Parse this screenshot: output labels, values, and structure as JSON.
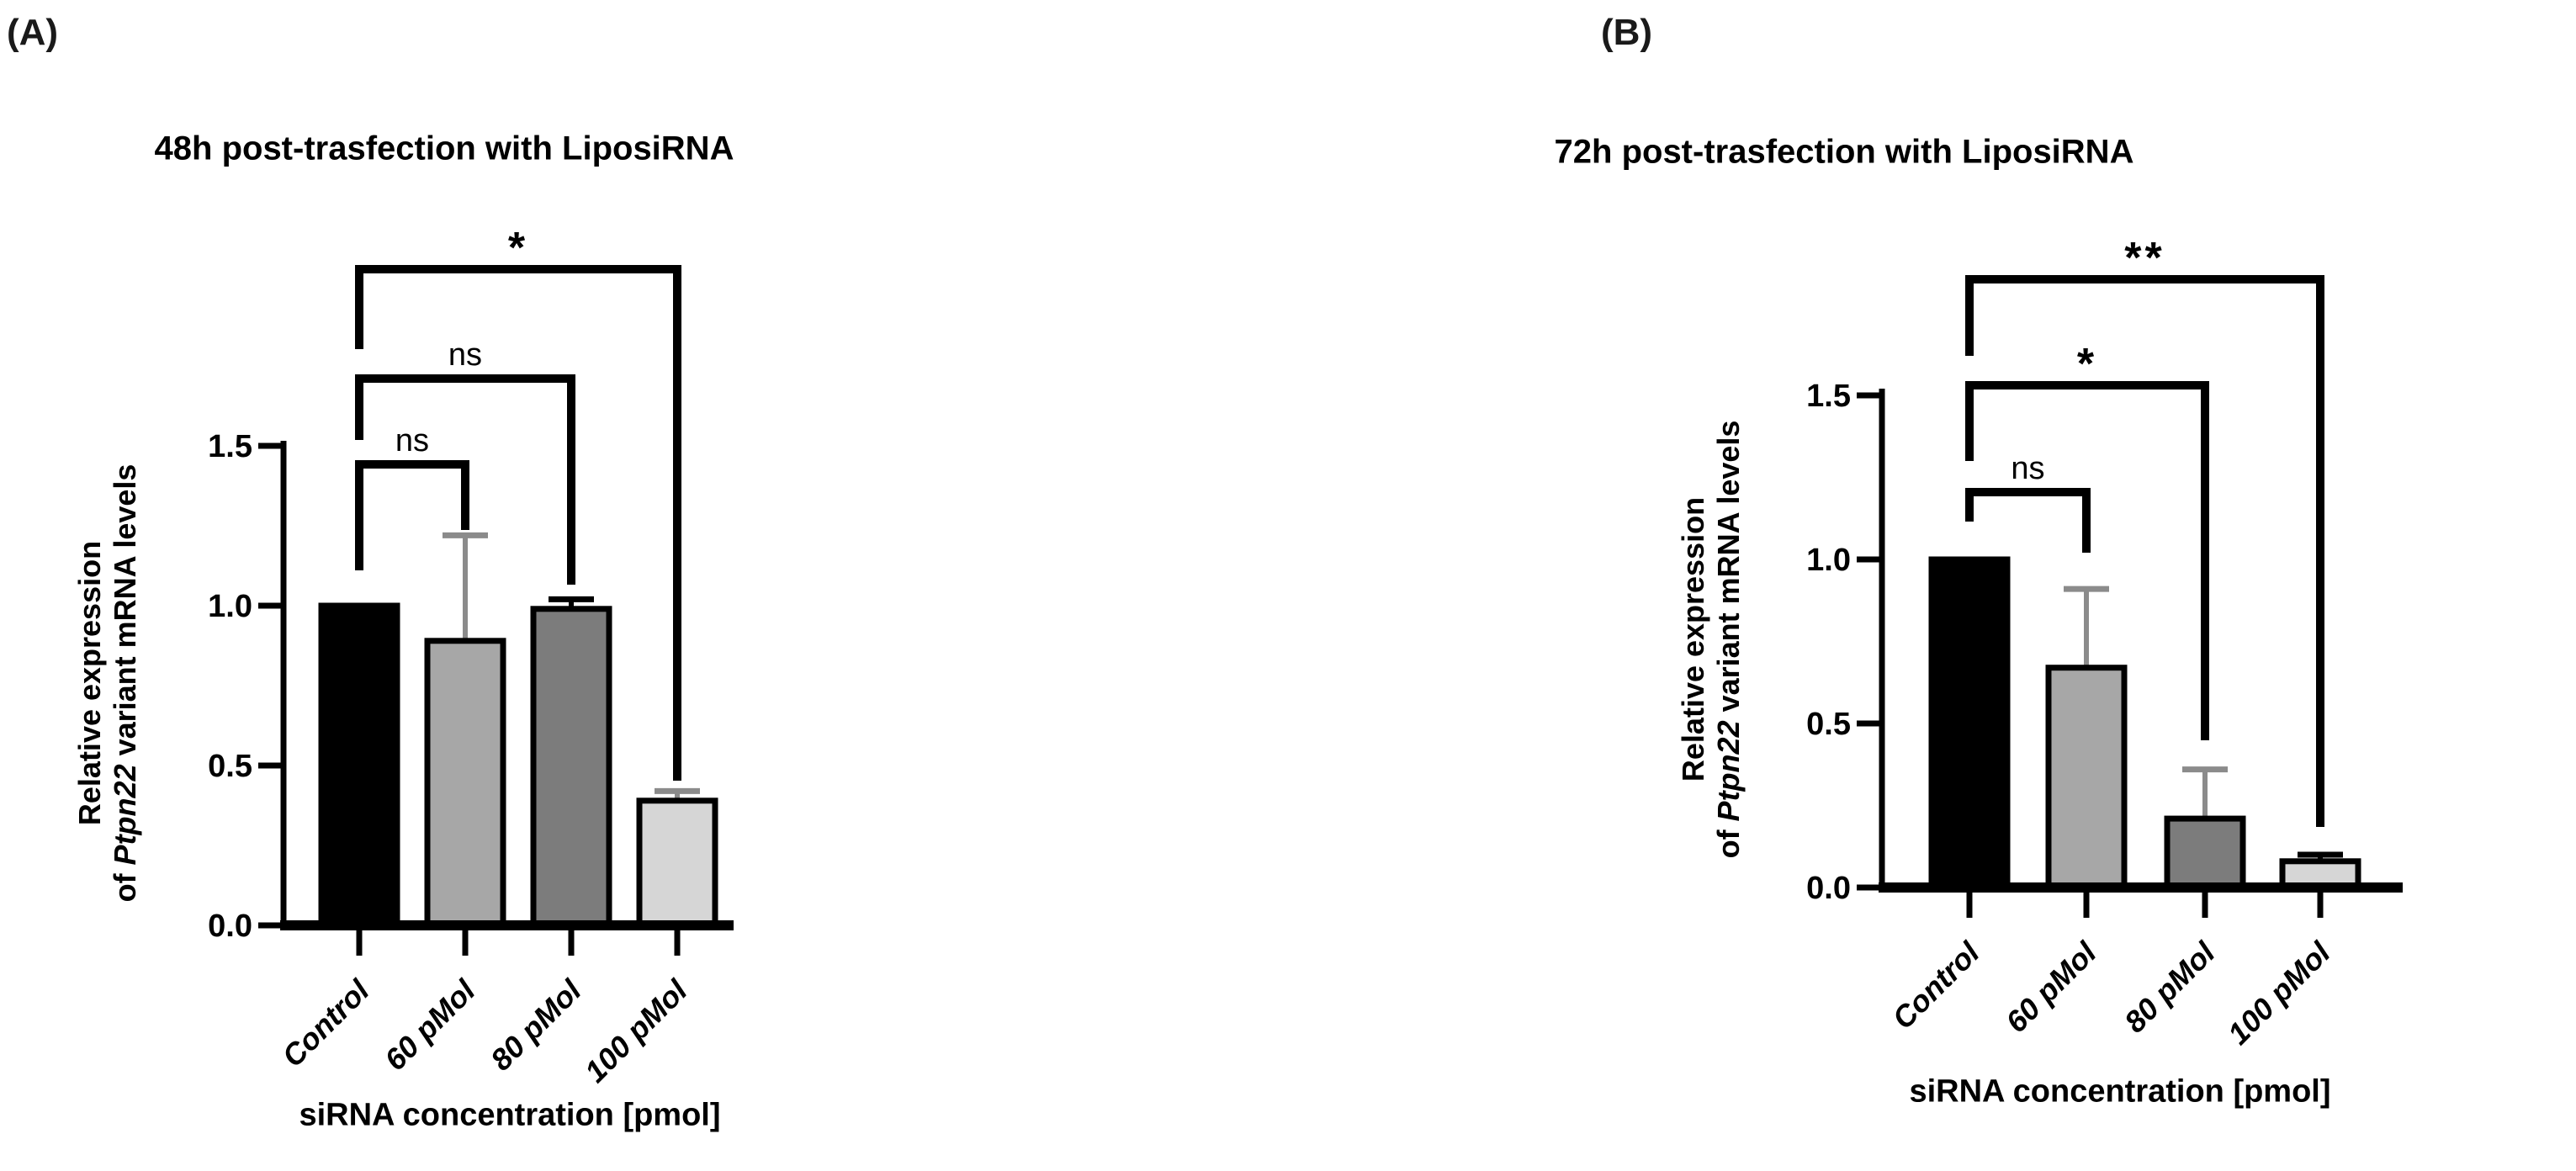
{
  "chart_data": [
    {
      "type": "bar",
      "panel_letter": "(A)",
      "title": "48h post-trasfection with LiposiRNA",
      "xlabel": "siRNA concentration [pmol]",
      "ylabel_line1": "Relative expression",
      "ylabel_line2_prefix": "of ",
      "ylabel_line2_italic": "Ptpn22",
      "ylabel_line2_suffix": " variant mRNA levels",
      "categories": [
        "Control",
        "60 pMol",
        "80 pMol",
        "100 pMol"
      ],
      "values": [
        1.0,
        0.89,
        0.99,
        0.39
      ],
      "errors_top": [
        null,
        1.22,
        1.02,
        0.42
      ],
      "bar_colors": [
        "#000000",
        "#a7a7a7",
        "#7c7c7c",
        "#d6d6d6"
      ],
      "error_bar_colors": [
        null,
        "#8b8b8b",
        "#000000",
        "#8b8b8b"
      ],
      "y_tick_labels": [
        "0.0",
        "0.5",
        "1.0",
        "1.5"
      ],
      "ylim": [
        0,
        1.5
      ],
      "grid": false,
      "legend": "none",
      "significance_brackets": [
        {
          "from": "Control",
          "to": "60 pMol",
          "label": "ns"
        },
        {
          "from": "Control",
          "to": "80 pMol",
          "label": "ns"
        },
        {
          "from": "Control",
          "to": "100 pMol",
          "label": "*"
        }
      ]
    },
    {
      "type": "bar",
      "panel_letter": "(B)",
      "title": "72h post-trasfection with LiposiRNA",
      "xlabel": "siRNA concentration [pmol]",
      "ylabel_line1": "Relative expression",
      "ylabel_line2_prefix": "of ",
      "ylabel_line2_italic": "Ptpn22",
      "ylabel_line2_suffix": " variant mRNA levels",
      "categories": [
        "Control",
        "60 pMol",
        "80 pMol",
        "100 pMol"
      ],
      "values": [
        1.0,
        0.67,
        0.21,
        0.08
      ],
      "errors_top": [
        null,
        0.91,
        0.36,
        0.1
      ],
      "bar_colors": [
        "#000000",
        "#a7a7a7",
        "#7c7c7c",
        "#d6d6d6"
      ],
      "error_bar_colors": [
        null,
        "#8b8b8b",
        "#8b8b8b",
        "#000000"
      ],
      "y_tick_labels": [
        "0.0",
        "0.5",
        "1.0",
        "1.5"
      ],
      "ylim": [
        0,
        1.5
      ],
      "grid": false,
      "legend": "none",
      "significance_brackets": [
        {
          "from": "Control",
          "to": "60 pMol",
          "label": "ns"
        },
        {
          "from": "Control",
          "to": "80 pMol",
          "label": "*"
        },
        {
          "from": "Control",
          "to": "100 pMol",
          "label": "**"
        }
      ]
    }
  ]
}
